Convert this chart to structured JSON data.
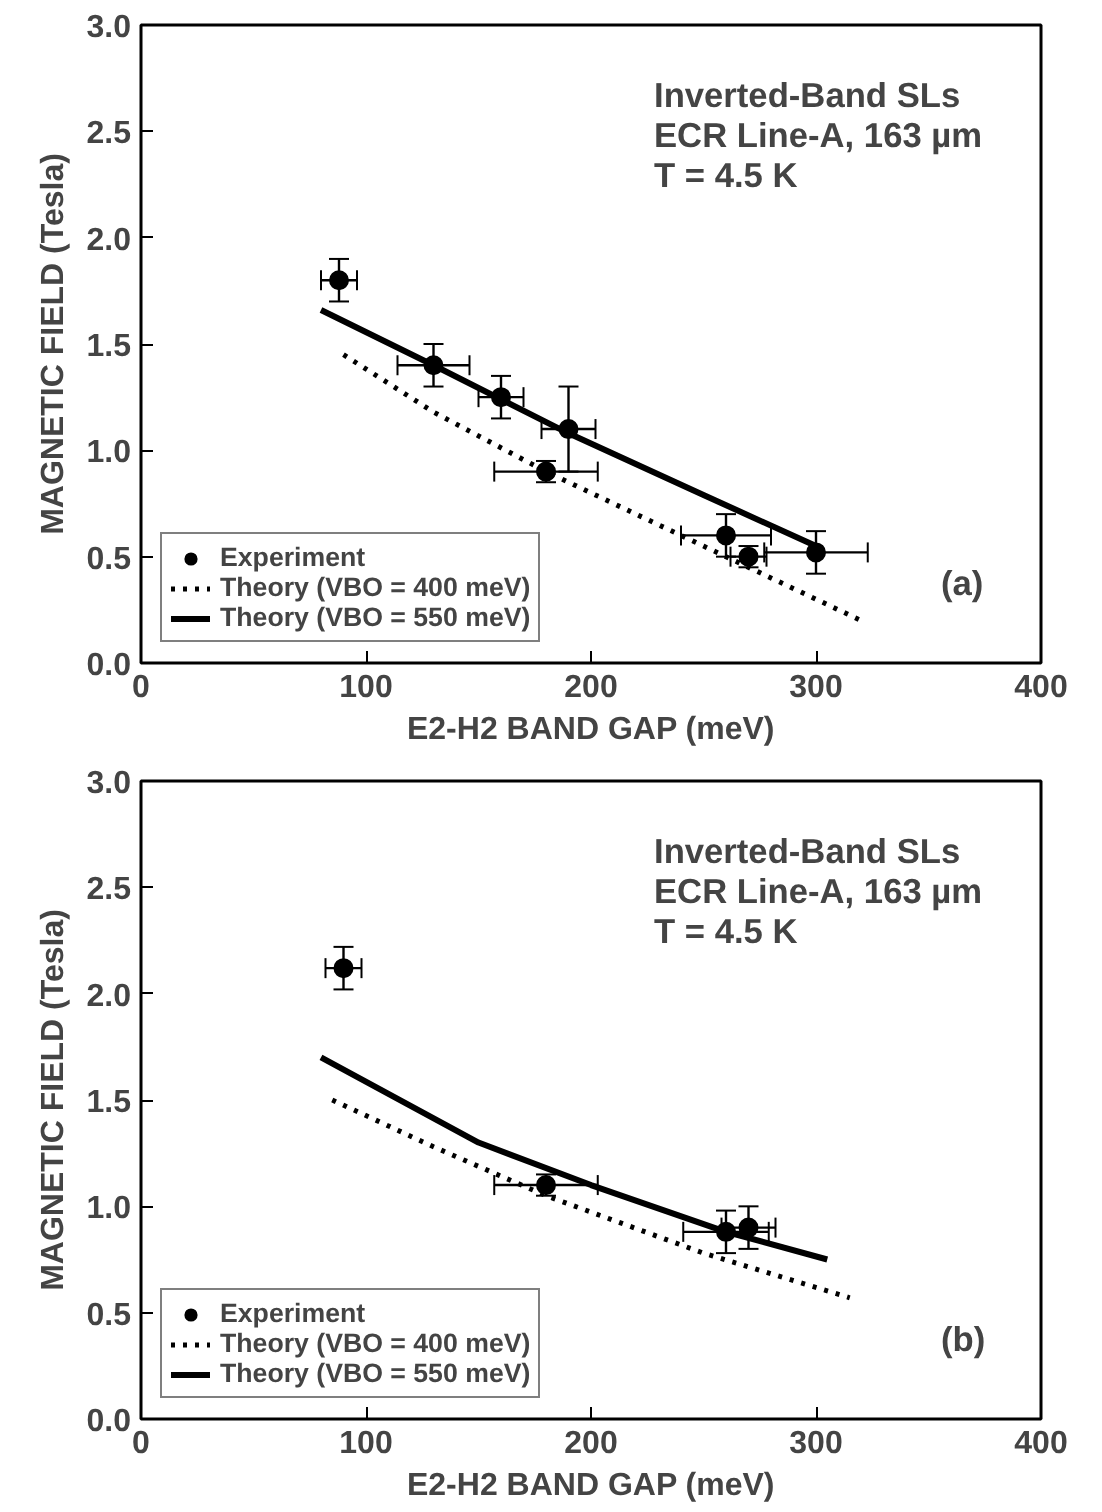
{
  "chart_data": [
    {
      "type": "scatter",
      "xlabel": "E2-H2 BAND GAP (meV)",
      "ylabel": "MAGNETIC FIELD (Tesla)",
      "xlim": [
        0,
        400
      ],
      "ylim": [
        0,
        3
      ],
      "xticks": [
        0,
        100,
        200,
        300,
        400
      ],
      "yticks": [
        {
          "value": 0,
          "label": "0.0"
        },
        {
          "value": 0.5,
          "label": "0.5"
        },
        {
          "value": 1,
          "label": "1.0"
        },
        {
          "value": 1.5,
          "label": "1.5"
        },
        {
          "value": 2,
          "label": "2.0"
        },
        {
          "value": 2.5,
          "label": "2.5"
        },
        {
          "value": 3,
          "label": "3.0"
        }
      ],
      "legend": "bottom left",
      "grid": false,
      "annotations": [
        "Inverted-Band SLs",
        "ECR Line-A, 163 µm",
        "T = 4.5 K",
        "(a)"
      ],
      "series": [
        {
          "name": "Experiment",
          "marker": "circle",
          "color": "#000000",
          "x": [
            88,
            130,
            160,
            190,
            180,
            260,
            270,
            300
          ],
          "values": [
            1.8,
            1.4,
            1.25,
            1.1,
            0.9,
            0.6,
            0.5,
            0.52
          ],
          "errors": [
            0.1,
            0.1,
            0.1,
            0.2,
            0.05,
            0.1,
            0.05,
            0.1
          ],
          "xerrors": [
            8,
            16,
            10,
            12,
            23,
            20,
            8,
            23
          ]
        },
        {
          "name": "Theory (VBO = 400 meV)",
          "type": "line",
          "line_style": "dotted",
          "color": "#000000",
          "x": [
            90,
            130,
            180,
            250,
            320
          ],
          "values": [
            1.45,
            1.18,
            0.9,
            0.55,
            0.2
          ]
        },
        {
          "name": "Theory (VBO = 550 meV)",
          "type": "line",
          "line_style": "solid",
          "color": "#000000",
          "x": [
            80,
            130,
            190,
            250,
            300
          ],
          "values": [
            1.66,
            1.4,
            1.08,
            0.79,
            0.55
          ]
        }
      ]
    },
    {
      "type": "scatter",
      "xlabel": "E2-H2 BAND GAP (meV)",
      "ylabel": "MAGNETIC FIELD (Tesla)",
      "xlim": [
        0,
        400
      ],
      "ylim": [
        0,
        3
      ],
      "xticks": [
        0,
        100,
        200,
        300,
        400
      ],
      "yticks": [
        {
          "value": 0,
          "label": "0.0"
        },
        {
          "value": 0.5,
          "label": "0.5"
        },
        {
          "value": 1,
          "label": "1.0"
        },
        {
          "value": 1.5,
          "label": "1.5"
        },
        {
          "value": 2,
          "label": "2.0"
        },
        {
          "value": 2.5,
          "label": "2.5"
        },
        {
          "value": 3,
          "label": "3.0"
        }
      ],
      "legend": "bottom left",
      "grid": false,
      "annotations": [
        "Inverted-Band SLs",
        "ECR Line-A, 163 µm",
        "T = 4.5 K",
        "(b)"
      ],
      "series": [
        {
          "name": "Experiment",
          "marker": "circle",
          "color": "#000000",
          "x": [
            90,
            180,
            260,
            270
          ],
          "values": [
            2.12,
            1.1,
            0.88,
            0.9
          ],
          "errors": [
            0.1,
            0.05,
            0.1,
            0.1
          ],
          "xerrors": [
            8,
            23,
            19,
            12
          ]
        },
        {
          "name": "Theory (VBO = 400 meV)",
          "type": "line",
          "line_style": "dotted",
          "color": "#000000",
          "x": [
            85,
            130,
            180,
            250,
            315
          ],
          "values": [
            1.5,
            1.28,
            1.05,
            0.78,
            0.57
          ]
        },
        {
          "name": "Theory (VBO = 550 meV)",
          "type": "line",
          "line_style": "solid",
          "color": "#000000",
          "x": [
            80,
            150,
            200,
            260,
            305
          ],
          "values": [
            1.7,
            1.3,
            1.1,
            0.88,
            0.75
          ]
        }
      ]
    }
  ]
}
